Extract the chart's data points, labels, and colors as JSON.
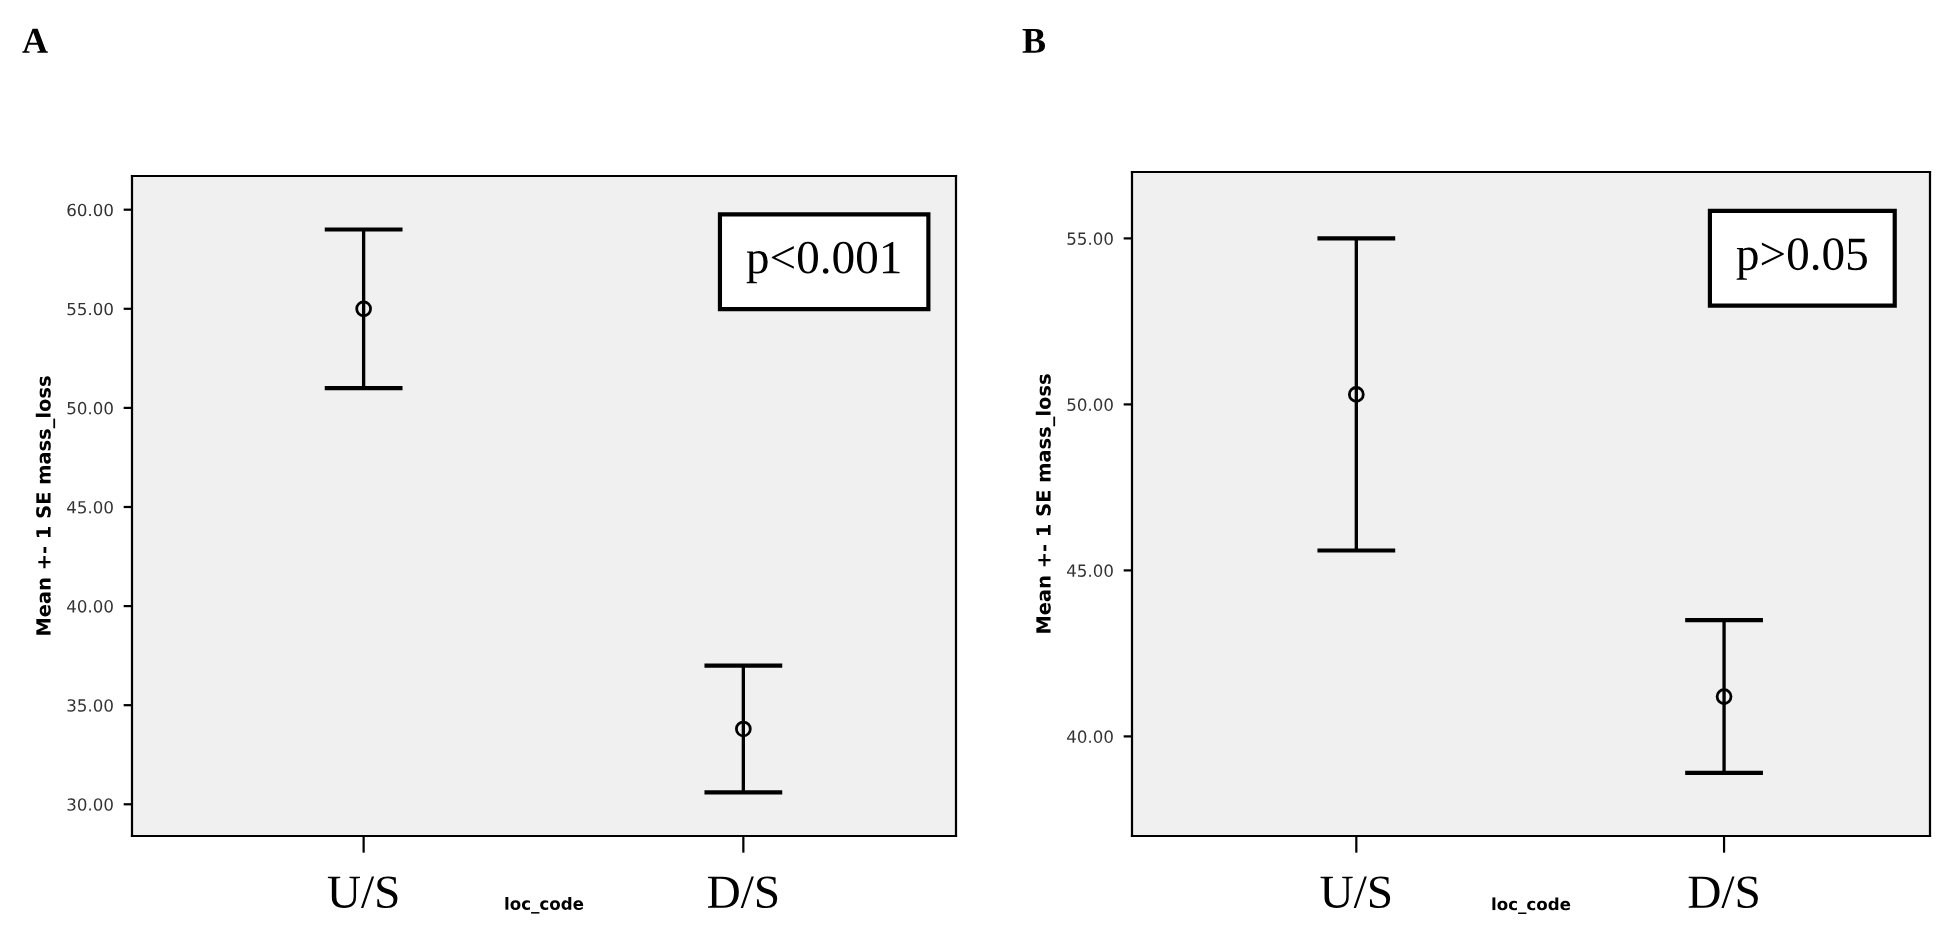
{
  "chart_data": [
    {
      "type": "scatter",
      "title": "A",
      "xlabel": "loc_code",
      "ylabel": "Mean +- 1 SE mass_loss",
      "categories": [
        "U/S",
        "D/S"
      ],
      "values": [
        55.0,
        33.8
      ],
      "errors": [
        4.0,
        3.2
      ],
      "color": "#000000",
      "marker": "circle",
      "ylim": [
        28.4,
        61.7
      ],
      "yticks": [
        {
          "value": 30,
          "label": "30.00"
        },
        {
          "value": 35,
          "label": "35.00"
        },
        {
          "value": 40,
          "label": "40.00"
        },
        {
          "value": 45,
          "label": "45.00"
        },
        {
          "value": 50,
          "label": "50.00"
        },
        {
          "value": 55,
          "label": "55.00"
        },
        {
          "value": 60,
          "label": "60.00"
        }
      ],
      "annotations": [
        "p<0.001"
      ],
      "grid": false,
      "legend": false
    },
    {
      "type": "scatter",
      "title": "B",
      "xlabel": "loc_code",
      "ylabel": "Mean +- 1 SE mass_loss",
      "categories": [
        "U/S",
        "D/S"
      ],
      "values": [
        50.3,
        41.2
      ],
      "errors": [
        4.7,
        2.3
      ],
      "color": "#000000",
      "marker": "circle",
      "ylim": [
        37.0,
        57.0
      ],
      "yticks": [
        {
          "value": 40,
          "label": "40.00"
        },
        {
          "value": 45,
          "label": "45.00"
        },
        {
          "value": 50,
          "label": "50.00"
        },
        {
          "value": 55,
          "label": "55.00"
        }
      ],
      "annotations": [
        "p>0.05"
      ],
      "grid": false,
      "legend": false
    }
  ]
}
